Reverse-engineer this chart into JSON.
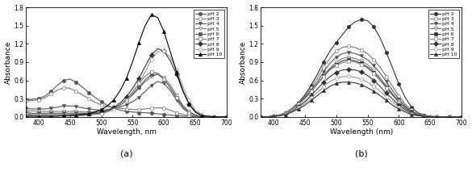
{
  "panel_a": {
    "title": "(a)",
    "xlabel": "Wavelength, nm",
    "ylabel": "Absorbance",
    "xlim": [
      380,
      700
    ],
    "ylim": [
      0.0,
      1.8
    ],
    "yticks": [
      0.0,
      0.3,
      0.6,
      0.9,
      1.2,
      1.5,
      1.8
    ],
    "xticks": [
      400,
      450,
      500,
      550,
      600,
      650,
      700
    ],
    "wavelengths": [
      380,
      390,
      400,
      410,
      420,
      430,
      440,
      450,
      460,
      470,
      480,
      490,
      500,
      510,
      520,
      530,
      540,
      550,
      560,
      570,
      580,
      590,
      600,
      610,
      620,
      630,
      640,
      650,
      660,
      670,
      680,
      690,
      700
    ],
    "curves": {
      "pH 2": [
        0.28,
        0.29,
        0.3,
        0.34,
        0.42,
        0.52,
        0.6,
        0.62,
        0.57,
        0.49,
        0.4,
        0.32,
        0.25,
        0.19,
        0.14,
        0.11,
        0.09,
        0.08,
        0.07,
        0.07,
        0.06,
        0.05,
        0.04,
        0.03,
        0.02,
        0.01,
        0.01,
        0.0,
        0.0,
        0.0,
        0.0,
        0.0,
        0.0
      ],
      "pH 3": [
        0.26,
        0.27,
        0.28,
        0.31,
        0.38,
        0.44,
        0.48,
        0.47,
        0.42,
        0.36,
        0.3,
        0.24,
        0.2,
        0.17,
        0.15,
        0.14,
        0.13,
        0.12,
        0.12,
        0.13,
        0.14,
        0.15,
        0.14,
        0.11,
        0.07,
        0.04,
        0.02,
        0.01,
        0.0,
        0.0,
        0.0,
        0.0,
        0.0
      ],
      "pH 4": [
        0.14,
        0.13,
        0.13,
        0.13,
        0.14,
        0.16,
        0.18,
        0.18,
        0.17,
        0.15,
        0.13,
        0.12,
        0.11,
        0.12,
        0.13,
        0.16,
        0.2,
        0.25,
        0.32,
        0.42,
        0.52,
        0.58,
        0.55,
        0.43,
        0.28,
        0.14,
        0.06,
        0.02,
        0.01,
        0.0,
        0.0,
        0.0,
        0.0
      ],
      "pH 5": [
        0.1,
        0.1,
        0.09,
        0.09,
        0.09,
        0.09,
        0.09,
        0.09,
        0.09,
        0.08,
        0.08,
        0.09,
        0.1,
        0.12,
        0.15,
        0.2,
        0.27,
        0.36,
        0.47,
        0.58,
        0.66,
        0.7,
        0.65,
        0.52,
        0.36,
        0.19,
        0.09,
        0.03,
        0.01,
        0.0,
        0.0,
        0.0,
        0.0
      ],
      "pH 6": [
        0.07,
        0.06,
        0.06,
        0.06,
        0.06,
        0.06,
        0.06,
        0.06,
        0.06,
        0.06,
        0.06,
        0.07,
        0.08,
        0.1,
        0.14,
        0.19,
        0.27,
        0.37,
        0.49,
        0.61,
        0.7,
        0.7,
        0.62,
        0.48,
        0.32,
        0.17,
        0.07,
        0.03,
        0.01,
        0.0,
        0.0,
        0.0,
        0.0
      ],
      "pH 7": [
        0.05,
        0.04,
        0.04,
        0.04,
        0.04,
        0.04,
        0.04,
        0.04,
        0.04,
        0.04,
        0.05,
        0.06,
        0.07,
        0.1,
        0.14,
        0.2,
        0.29,
        0.41,
        0.55,
        0.67,
        0.74,
        0.72,
        0.62,
        0.47,
        0.31,
        0.16,
        0.07,
        0.02,
        0.01,
        0.0,
        0.0,
        0.0,
        0.0
      ],
      "pH 8": [
        0.03,
        0.02,
        0.02,
        0.02,
        0.02,
        0.02,
        0.02,
        0.02,
        0.03,
        0.03,
        0.04,
        0.05,
        0.07,
        0.1,
        0.15,
        0.23,
        0.33,
        0.47,
        0.63,
        0.83,
        1.02,
        1.12,
        1.08,
        0.92,
        0.7,
        0.43,
        0.21,
        0.08,
        0.03,
        0.01,
        0.0,
        0.0,
        0.0
      ],
      "pH 9": [
        0.02,
        0.02,
        0.02,
        0.02,
        0.02,
        0.02,
        0.02,
        0.02,
        0.02,
        0.02,
        0.03,
        0.04,
        0.05,
        0.08,
        0.12,
        0.18,
        0.27,
        0.39,
        0.55,
        0.74,
        0.94,
        1.07,
        1.08,
        0.98,
        0.78,
        0.5,
        0.27,
        0.11,
        0.04,
        0.01,
        0.0,
        0.0,
        0.0
      ],
      "pH 10": [
        0.01,
        0.01,
        0.01,
        0.01,
        0.01,
        0.01,
        0.02,
        0.02,
        0.03,
        0.04,
        0.05,
        0.08,
        0.12,
        0.18,
        0.28,
        0.43,
        0.63,
        0.91,
        1.22,
        1.5,
        1.68,
        1.63,
        1.4,
        1.07,
        0.74,
        0.43,
        0.21,
        0.08,
        0.02,
        0.01,
        0.0,
        0.0,
        0.0
      ]
    },
    "styles": {
      "pH 2": {
        "color": "#555555",
        "marker": "o",
        "filled": true,
        "linestyle": "-"
      },
      "pH 3": {
        "color": "#777777",
        "marker": "o",
        "filled": false,
        "linestyle": "-"
      },
      "pH 4": {
        "color": "#555555",
        "marker": "v",
        "filled": true,
        "linestyle": "-"
      },
      "pH 5": {
        "color": "#777777",
        "marker": "v",
        "filled": false,
        "linestyle": "-"
      },
      "pH 6": {
        "color": "#555555",
        "marker": "s",
        "filled": true,
        "linestyle": "-"
      },
      "pH 7": {
        "color": "#777777",
        "marker": "s",
        "filled": false,
        "linestyle": "-"
      },
      "pH 8": {
        "color": "#333333",
        "marker": "D",
        "filled": true,
        "linestyle": "-"
      },
      "pH 9": {
        "color": "#999999",
        "marker": "o",
        "filled": false,
        "linestyle": "-"
      },
      "pH 10": {
        "color": "#000000",
        "marker": "^",
        "filled": true,
        "linestyle": "-"
      }
    }
  },
  "panel_b": {
    "title": "(b)",
    "xlabel": "Wavelength (nm)",
    "ylabel": "Absorbance",
    "xlim": [
      380,
      700
    ],
    "ylim": [
      0.0,
      1.8
    ],
    "yticks": [
      0.0,
      0.3,
      0.6,
      0.9,
      1.2,
      1.5,
      1.8
    ],
    "xticks": [
      400,
      450,
      500,
      550,
      600,
      650,
      700
    ],
    "wavelengths": [
      380,
      390,
      400,
      410,
      420,
      430,
      440,
      450,
      460,
      470,
      480,
      490,
      500,
      510,
      520,
      530,
      540,
      550,
      560,
      570,
      580,
      590,
      600,
      610,
      620,
      630,
      640,
      650,
      660,
      670,
      680,
      690,
      700
    ],
    "curves": {
      "pH 2": [
        0.0,
        0.0,
        0.01,
        0.03,
        0.07,
        0.14,
        0.24,
        0.36,
        0.52,
        0.7,
        0.9,
        1.08,
        1.22,
        1.35,
        1.48,
        1.56,
        1.6,
        1.58,
        1.48,
        1.3,
        1.06,
        0.8,
        0.54,
        0.32,
        0.16,
        0.07,
        0.03,
        0.01,
        0.0,
        0.0,
        0.0,
        0.0,
        0.0
      ],
      "pH 3": [
        0.0,
        0.0,
        0.01,
        0.03,
        0.07,
        0.14,
        0.23,
        0.34,
        0.48,
        0.64,
        0.82,
        0.96,
        1.08,
        1.14,
        1.16,
        1.14,
        1.1,
        1.04,
        0.94,
        0.82,
        0.66,
        0.5,
        0.34,
        0.21,
        0.11,
        0.05,
        0.02,
        0.01,
        0.0,
        0.0,
        0.0,
        0.0,
        0.0
      ],
      "pH 4": [
        0.0,
        0.0,
        0.01,
        0.03,
        0.07,
        0.13,
        0.22,
        0.32,
        0.44,
        0.58,
        0.74,
        0.88,
        0.98,
        1.04,
        1.06,
        1.04,
        1.0,
        0.94,
        0.84,
        0.72,
        0.58,
        0.43,
        0.29,
        0.18,
        0.09,
        0.04,
        0.02,
        0.0,
        0.0,
        0.0,
        0.0,
        0.0,
        0.0
      ],
      "pH 5": [
        0.0,
        0.0,
        0.01,
        0.03,
        0.07,
        0.13,
        0.21,
        0.3,
        0.42,
        0.54,
        0.68,
        0.8,
        0.9,
        0.96,
        0.98,
        0.96,
        0.92,
        0.86,
        0.76,
        0.64,
        0.51,
        0.38,
        0.26,
        0.16,
        0.08,
        0.04,
        0.01,
        0.0,
        0.0,
        0.0,
        0.0,
        0.0,
        0.0
      ],
      "pH 6": [
        0.0,
        0.0,
        0.01,
        0.03,
        0.07,
        0.13,
        0.21,
        0.3,
        0.42,
        0.54,
        0.67,
        0.78,
        0.86,
        0.92,
        0.94,
        0.92,
        0.88,
        0.82,
        0.73,
        0.61,
        0.49,
        0.36,
        0.24,
        0.15,
        0.08,
        0.03,
        0.01,
        0.0,
        0.0,
        0.0,
        0.0,
        0.0,
        0.0
      ],
      "pH 7": [
        0.0,
        0.0,
        0.01,
        0.03,
        0.07,
        0.13,
        0.21,
        0.3,
        0.42,
        0.54,
        0.66,
        0.77,
        0.84,
        0.89,
        0.91,
        0.9,
        0.86,
        0.8,
        0.71,
        0.6,
        0.47,
        0.35,
        0.23,
        0.14,
        0.07,
        0.03,
        0.01,
        0.0,
        0.0,
        0.0,
        0.0,
        0.0,
        0.0
      ],
      "pH 8": [
        0.0,
        0.0,
        0.01,
        0.02,
        0.05,
        0.1,
        0.17,
        0.25,
        0.35,
        0.46,
        0.57,
        0.66,
        0.73,
        0.77,
        0.78,
        0.77,
        0.74,
        0.68,
        0.6,
        0.5,
        0.39,
        0.29,
        0.19,
        0.12,
        0.06,
        0.03,
        0.01,
        0.0,
        0.0,
        0.0,
        0.0,
        0.0,
        0.0
      ],
      "pH 9": [
        0.0,
        0.0,
        0.01,
        0.02,
        0.05,
        0.09,
        0.15,
        0.22,
        0.31,
        0.4,
        0.5,
        0.58,
        0.63,
        0.66,
        0.67,
        0.65,
        0.62,
        0.57,
        0.5,
        0.42,
        0.33,
        0.24,
        0.16,
        0.1,
        0.05,
        0.02,
        0.01,
        0.0,
        0.0,
        0.0,
        0.0,
        0.0,
        0.0
      ],
      "pH 10": [
        0.0,
        0.0,
        0.01,
        0.02,
        0.04,
        0.08,
        0.13,
        0.19,
        0.27,
        0.35,
        0.43,
        0.5,
        0.55,
        0.57,
        0.57,
        0.56,
        0.53,
        0.48,
        0.42,
        0.35,
        0.27,
        0.19,
        0.13,
        0.08,
        0.04,
        0.02,
        0.01,
        0.0,
        0.0,
        0.0,
        0.0,
        0.0,
        0.0
      ]
    },
    "styles": {
      "pH 2": {
        "color": "#333333",
        "marker": "o",
        "filled": true,
        "linestyle": "-"
      },
      "pH 3": {
        "color": "#777777",
        "marker": "o",
        "filled": false,
        "linestyle": "-"
      },
      "pH 4": {
        "color": "#555555",
        "marker": "v",
        "filled": true,
        "linestyle": "-"
      },
      "pH 5": {
        "color": "#777777",
        "marker": "v",
        "filled": false,
        "linestyle": "-"
      },
      "pH 6": {
        "color": "#333333",
        "marker": "s",
        "filled": true,
        "linestyle": "-"
      },
      "pH 7": {
        "color": "#888888",
        "marker": "s",
        "filled": false,
        "linestyle": "-"
      },
      "pH 8": {
        "color": "#333333",
        "marker": "D",
        "filled": true,
        "linestyle": "-"
      },
      "pH 9": {
        "color": "#999999",
        "marker": "o",
        "filled": false,
        "linestyle": "-"
      },
      "pH 10": {
        "color": "#333333",
        "marker": "^",
        "filled": true,
        "linestyle": "-"
      }
    }
  },
  "legend_labels": [
    "pH 2",
    "pH 3",
    "pH 4",
    "pH 5",
    "pH 6",
    "pH 7",
    "pH 8",
    "pH 9",
    "pH 10"
  ],
  "marker_every": 2,
  "markersize": 3.0,
  "linewidth": 0.8
}
